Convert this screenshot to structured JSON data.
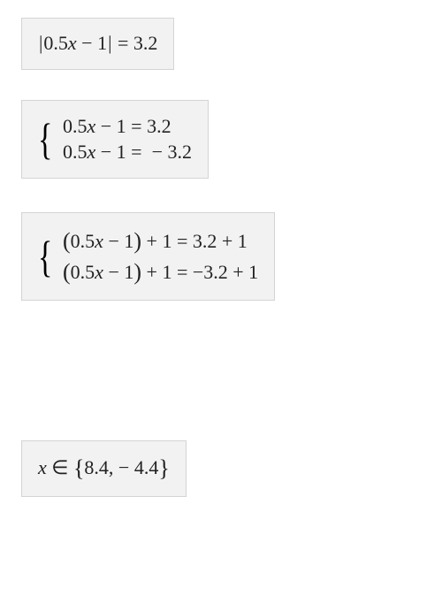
{
  "steps": {
    "s1": {
      "expr": "|0.5x − 1| = 3.2",
      "background": "#f2f2f2",
      "border": "#d4d4d4",
      "fontsize": 22
    },
    "s2": {
      "line1": "0.5x − 1 = 3.2",
      "line2": "0.5x − 1 =  − 3.2",
      "background": "#f2f2f2",
      "border": "#d4d4d4",
      "fontsize": 22
    },
    "s3": {
      "line1": "(0.5x − 1) + 1 = 3.2 + 1",
      "line2": "(0.5x − 1) + 1 = −3.2 + 1",
      "background": "#f2f2f2",
      "border": "#d4d4d4",
      "fontsize": 22
    },
    "s4": {
      "expr_prefix": "x ∈ ",
      "set_open": "{",
      "values": "8.4, − 4.4",
      "set_close": "}",
      "background": "#f2f2f2",
      "border": "#d4d4d4",
      "fontsize": 22
    }
  },
  "style": {
    "text_color": "#222222",
    "page_background": "#ffffff"
  }
}
